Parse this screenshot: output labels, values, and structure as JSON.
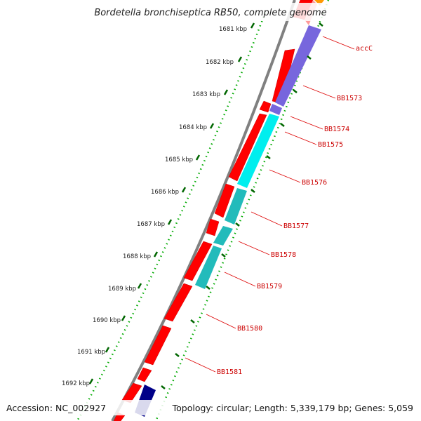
{
  "title": "Bordetella bronchiseptica RB50, complete genome",
  "footer": {
    "accession": "Accession: NC_002927",
    "stats": "Topology: circular; Length: 5,339,179 bp; Genes: 5,059"
  },
  "kbp_labels": [
    "1681 kbp",
    "1682 kbp",
    "1683 kbp",
    "1684 kbp",
    "1685 kbp",
    "1686 kbp",
    "1687 kbp",
    "1688 kbp",
    "1689 kbp",
    "1690 kbp",
    "1691 kbp",
    "1692 kbp"
  ],
  "gene_labels": [
    "accC",
    "BB1573",
    "BB1574",
    "BB1575",
    "BB1576",
    "BB1577",
    "BB1578",
    "BB1579",
    "BB1580",
    "BB1581"
  ],
  "colors": {
    "cds": "#ff0000",
    "cds_light": "#ff9999",
    "backbone": "#808080",
    "kbp_tick": "#006600",
    "gc_dots": "#00aa00",
    "label": "#cc0000",
    "purple": "#7766dd",
    "cyan": "#00eeee",
    "teal": "#22bbbb",
    "navy": "#000088",
    "orange": "#ff9900"
  }
}
